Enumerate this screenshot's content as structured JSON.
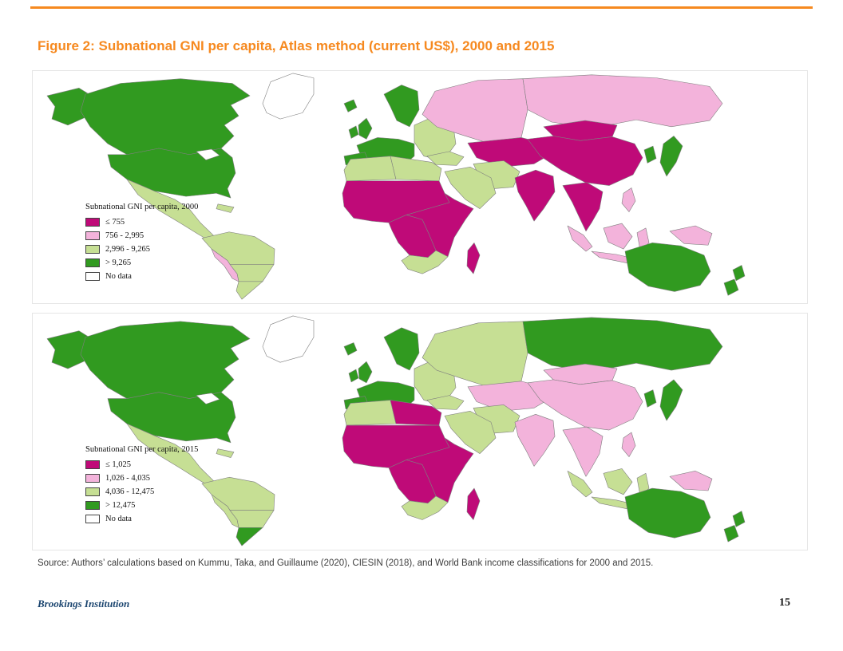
{
  "page": {
    "title": "Figure 2: Subnational GNI per capita, Atlas method (current US$), 2000 and 2015",
    "source": "Source: Authors’ calculations based on Kummu, Taka, and Guillaume (2020), CIESIN (2018), and World Bank income classifications for 2000 and 2015.",
    "footer": {
      "left": "Brookings Institution",
      "page_number": "15"
    },
    "accent_color": "#F6891F",
    "footer_brand_color": "#1C4670"
  },
  "colors": {
    "c1": "#BF0A78",
    "c2": "#F3B3DB",
    "c3": "#C6DF94",
    "c4": "#319A20",
    "nodata": "#FFFFFF"
  },
  "chart_data": [
    {
      "type": "choropleth-map",
      "title": "Subnational GNI per capita, 2000",
      "legend": [
        {
          "label": "≤ 755",
          "class": "c1",
          "color": "#BF0A78"
        },
        {
          "label": "756 - 2,995",
          "class": "c2",
          "color": "#F3B3DB"
        },
        {
          "label": "2,996 - 9,265",
          "class": "c3",
          "color": "#C6DF94"
        },
        {
          "label": "> 9,265",
          "class": "c4",
          "color": "#319A20"
        },
        {
          "label": "No data",
          "class": "nodata",
          "color": "#FFFFFF"
        }
      ],
      "regions": {
        "greenland": "nodata",
        "iceland": "c4",
        "alaska": "c4",
        "canada": "c4",
        "usa": "c4",
        "great-lakes": "nodata",
        "mexico": "c3",
        "cuba": "c3",
        "south-america-north": "c3",
        "brazil-east": "c3",
        "south-cone": "c3",
        "andes": "c2",
        "uk": "c4",
        "ireland": "c4",
        "scandinavia": "c4",
        "west-europe": "c4",
        "iberia": "c4",
        "east-europe": "c3",
        "russia-west": "c2",
        "russia-east": "c2",
        "central-asia": "c1",
        "turkey": "c3",
        "arabia": "c3",
        "iran": "c3",
        "maghreb": "c3",
        "libya-egypt": "c3",
        "sahel-west-africa": "c1",
        "east-africa": "c1",
        "central-africa": "c1",
        "southern-africa": "c3",
        "madagascar": "c1",
        "india": "c1",
        "china": "c1",
        "mongolia": "c1",
        "southeast-asia": "c1",
        "sumatra": "c2",
        "java": "c2",
        "borneo": "c2",
        "sulawesi": "c2",
        "philippines": "c2",
        "new-guinea": "c2",
        "japan": "c4",
        "korea": "c4",
        "australia": "c4",
        "new-zealand-north": "c4",
        "new-zealand-south": "c4"
      }
    },
    {
      "type": "choropleth-map",
      "title": "Subnational GNI per capita, 2015",
      "legend": [
        {
          "label": "≤ 1,025",
          "class": "c1",
          "color": "#BF0A78"
        },
        {
          "label": "1,026 - 4,035",
          "class": "c2",
          "color": "#F3B3DB"
        },
        {
          "label": "4,036 - 12,475",
          "class": "c3",
          "color": "#C6DF94"
        },
        {
          "label": "> 12,475",
          "class": "c4",
          "color": "#319A20"
        },
        {
          "label": "No data",
          "class": "nodata",
          "color": "#FFFFFF"
        }
      ],
      "regions": {
        "greenland": "nodata",
        "iceland": "c4",
        "alaska": "c4",
        "canada": "c4",
        "usa": "c4",
        "great-lakes": "nodata",
        "mexico": "c3",
        "cuba": "c3",
        "south-america-north": "c3",
        "brazil-east": "c3",
        "south-cone": "c4",
        "andes": "c3",
        "uk": "c4",
        "ireland": "c4",
        "scandinavia": "c4",
        "west-europe": "c4",
        "iberia": "c4",
        "east-europe": "c3",
        "russia-west": "c3",
        "russia-east": "c4",
        "central-asia": "c2",
        "turkey": "c3",
        "arabia": "c3",
        "iran": "c3",
        "maghreb": "c3",
        "libya-egypt": "c1",
        "sahel-west-africa": "c1",
        "east-africa": "c1",
        "central-africa": "c1",
        "southern-africa": "c3",
        "madagascar": "c1",
        "india": "c2",
        "china": "c2",
        "mongolia": "c2",
        "southeast-asia": "c2",
        "sumatra": "c3",
        "java": "c3",
        "borneo": "c3",
        "sulawesi": "c3",
        "philippines": "c2",
        "new-guinea": "c2",
        "japan": "c4",
        "korea": "c4",
        "australia": "c4",
        "new-zealand-north": "c4",
        "new-zealand-south": "c4"
      }
    }
  ]
}
